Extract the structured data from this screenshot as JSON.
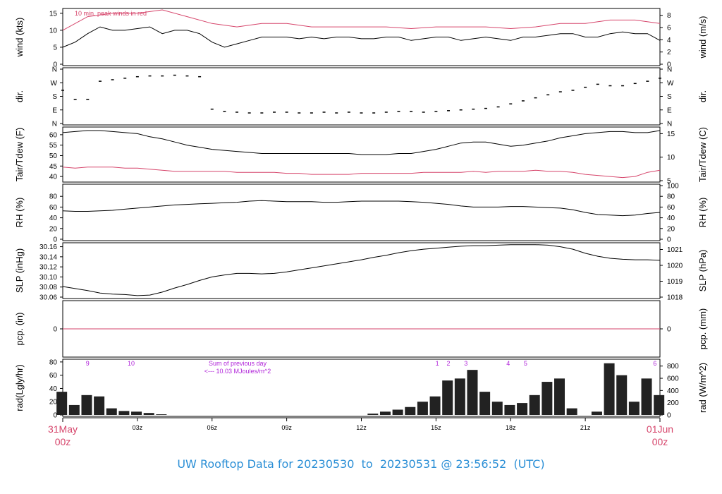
{
  "chart_data": {
    "type": "line",
    "title": "UW Rooftop Data for 20230530  to  20230531 @ 23:56:52  (UTC)",
    "x_range": [
      "00z",
      "24z"
    ],
    "x_ticks": [
      "03z",
      "06z",
      "09z",
      "12z",
      "15z",
      "18z",
      "21z"
    ],
    "x_start_label": [
      "31May",
      "00z"
    ],
    "x_end_label": [
      "01Jun",
      "00z"
    ],
    "accent_color": "#d6456b",
    "panels": [
      {
        "id": "wind",
        "ylabel": "wind (kts)",
        "ylabel_right": "wind (m/s)",
        "ylim": [
          0,
          16
        ],
        "ticks_left": [
          "0",
          "5",
          "10",
          "15"
        ],
        "ticks_right": [
          "0",
          "2",
          "4",
          "6",
          "8"
        ],
        "annotation": "10 min. peak winds in red",
        "series": [
          {
            "color": "#000000",
            "x": [
              0,
              0.5,
              1,
              1.5,
              2,
              2.5,
              3,
              3.5,
              4,
              4.5,
              5,
              5.5,
              6,
              6.5,
              7,
              7.5,
              8,
              8.5,
              9,
              9.5,
              10,
              10.5,
              11,
              11.5,
              12,
              12.5,
              13,
              13.5,
              14,
              14.5,
              15,
              15.5,
              16,
              16.5,
              17,
              17.5,
              18,
              18.5,
              19,
              19.5,
              20,
              20.5,
              21,
              21.5,
              22,
              22.5,
              23,
              23.5,
              24
            ],
            "y": [
              5,
              6.5,
              9,
              11,
              10,
              10,
              10.5,
              11,
              9,
              10,
              10,
              9,
              6.5,
              5,
              6,
              7,
              8,
              8,
              8,
              7.5,
              8,
              7.5,
              8,
              8,
              7.5,
              7.5,
              8,
              8,
              7,
              7.5,
              8,
              8,
              7,
              7.5,
              8,
              7.5,
              7,
              8,
              8,
              8.5,
              9,
              9,
              8,
              8,
              9,
              9.5,
              9,
              9,
              7
            ]
          },
          {
            "color": "#d6456b",
            "x": [
              0,
              1,
              2,
              3,
              4,
              5,
              6,
              7,
              8,
              9,
              10,
              11,
              12,
              13,
              14,
              15,
              16,
              17,
              18,
              19,
              20,
              21,
              22,
              23,
              24
            ],
            "y": [
              10,
              14,
              15,
              15,
              16,
              14,
              12,
              11,
              12,
              12,
              11,
              11,
              11,
              11,
              10.5,
              11,
              11,
              11,
              10.5,
              11,
              12,
              12,
              13,
              13,
              12
            ]
          }
        ]
      },
      {
        "id": "dir",
        "ylabel": "dir.",
        "ylabel_right": "dir.",
        "ylim": [
          0,
          360
        ],
        "ticks_left": [
          "N",
          "E",
          "S",
          "W",
          "N"
        ],
        "ticks_right": [
          "N",
          "E",
          "S",
          "W",
          "N"
        ],
        "series": [
          {
            "color": "#000000",
            "style": "points",
            "x": [
              0,
              0.5,
              1,
              1.5,
              2,
              2.5,
              3,
              3.5,
              4,
              4.5,
              5,
              5.5,
              6,
              6.5,
              7,
              7.5,
              8,
              8.5,
              9,
              9.5,
              10,
              10.5,
              11,
              11.5,
              12,
              12.5,
              13,
              13.5,
              14,
              14.5,
              15,
              15.5,
              16,
              16.5,
              17,
              17.5,
              18,
              18.5,
              19,
              19.5,
              20,
              20.5,
              21,
              21.5,
              22,
              22.5,
              23,
              23.5,
              24
            ],
            "y": [
              220,
              160,
              160,
              280,
              290,
              300,
              310,
              315,
              315,
              320,
              315,
              310,
              95,
              80,
              75,
              70,
              70,
              75,
              75,
              70,
              70,
              75,
              70,
              75,
              70,
              70,
              75,
              80,
              80,
              75,
              80,
              85,
              90,
              95,
              100,
              110,
              130,
              150,
              170,
              190,
              210,
              220,
              240,
              260,
              250,
              250,
              265,
              280,
              300
            ]
          }
        ]
      },
      {
        "id": "temp",
        "ylabel": "Tair/Tdew (F)",
        "ylabel_right": "Tair/Tdew (C)",
        "ylim": [
          38,
          63
        ],
        "ticks_left": [
          "40",
          "45",
          "50",
          "55",
          "60"
        ],
        "ticks_right": [
          "5",
          "10",
          "15"
        ],
        "series": [
          {
            "name": "Tair",
            "color": "#000000",
            "x": [
              0,
              0.5,
              1,
              1.5,
              2,
              2.5,
              3,
              3.5,
              4,
              4.5,
              5,
              5.5,
              6,
              6.5,
              7,
              7.5,
              8,
              8.5,
              9,
              9.5,
              10,
              10.5,
              11,
              11.5,
              12,
              12.5,
              13,
              13.5,
              14,
              14.5,
              15,
              15.5,
              16,
              16.5,
              17,
              17.5,
              18,
              18.5,
              19,
              19.5,
              20,
              20.5,
              21,
              21.5,
              22,
              22.5,
              23,
              23.5,
              24
            ],
            "y": [
              61,
              61.5,
              62,
              62,
              61.5,
              61,
              60.5,
              59,
              58,
              56.5,
              55,
              54,
              53,
              52.5,
              52,
              51.5,
              51,
              51,
              51,
              51,
              51,
              51,
              51,
              51,
              50.5,
              50.5,
              50.5,
              51,
              51,
              52,
              53,
              54.5,
              56,
              56.5,
              56.5,
              55.5,
              54.5,
              55,
              56,
              57,
              58.5,
              59.5,
              60.5,
              61,
              61.5,
              61.5,
              61,
              61,
              62
            ]
          },
          {
            "name": "Tdew",
            "color": "#d6456b",
            "x": [
              0,
              0.5,
              1,
              1.5,
              2,
              2.5,
              3,
              3.5,
              4,
              4.5,
              5,
              5.5,
              6,
              6.5,
              7,
              7.5,
              8,
              8.5,
              9,
              9.5,
              10,
              10.5,
              11,
              11.5,
              12,
              12.5,
              13,
              13.5,
              14,
              14.5,
              15,
              15.5,
              16,
              16.5,
              17,
              17.5,
              18,
              18.5,
              19,
              19.5,
              20,
              20.5,
              21,
              21.5,
              22,
              22.5,
              23,
              23.5,
              24
            ],
            "y": [
              44.5,
              44,
              44.5,
              44.5,
              44.5,
              44,
              44,
              43.5,
              43,
              42.5,
              42.5,
              42.5,
              42.5,
              42.5,
              42,
              42,
              42,
              42,
              41.5,
              41.5,
              41,
              41,
              41,
              41,
              41.5,
              41.5,
              41.5,
              41.5,
              41.5,
              42,
              42,
              42,
              42,
              42.5,
              42,
              42.5,
              42.5,
              42.5,
              43,
              42.5,
              42.5,
              42,
              41,
              40.5,
              40,
              39.5,
              40,
              42,
              43
            ]
          }
        ]
      },
      {
        "id": "rh",
        "ylabel": "RH (%)",
        "ylabel_right": "RH (%)",
        "ylim": [
          0,
          100
        ],
        "ticks_left": [
          "0",
          "20",
          "40",
          "60",
          "80"
        ],
        "ticks_right": [
          "0",
          "20",
          "40",
          "60",
          "80",
          "100"
        ],
        "series": [
          {
            "color": "#000000",
            "x": [
              0,
              0.5,
              1,
              1.5,
              2,
              2.5,
              3,
              3.5,
              4,
              4.5,
              5,
              5.5,
              6,
              6.5,
              7,
              7.5,
              8,
              8.5,
              9,
              9.5,
              10,
              10.5,
              11,
              11.5,
              12,
              12.5,
              13,
              13.5,
              14,
              14.5,
              15,
              15.5,
              16,
              16.5,
              17,
              17.5,
              18,
              18.5,
              19,
              19.5,
              20,
              20.5,
              21,
              21.5,
              22,
              22.5,
              23,
              23.5,
              24
            ],
            "y": [
              53,
              52,
              52,
              53,
              54,
              56,
              58,
              60,
              62,
              64,
              65,
              66,
              67,
              68,
              69,
              71,
              72,
              71,
              70,
              70,
              70,
              69,
              69,
              70,
              71,
              71,
              71,
              71,
              70,
              69,
              67,
              65,
              62,
              60,
              60,
              60,
              61,
              61,
              60,
              59,
              58,
              55,
              50,
              46,
              45,
              44,
              45,
              48,
              50
            ]
          }
        ]
      },
      {
        "id": "slp",
        "ylabel": "SLP (inHg)",
        "ylabel_right": "SLP (hPa)",
        "ylim": [
          30.06,
          30.165
        ],
        "ticks_left": [
          "30.06",
          "30.08",
          "30.10",
          "30.12",
          "30.14",
          "30.16"
        ],
        "ticks_right": [
          "1018",
          "1019",
          "1020",
          "1021"
        ],
        "series": [
          {
            "color": "#000000",
            "x": [
              0,
              0.5,
              1,
              1.5,
              2,
              2.5,
              3,
              3.5,
              4,
              4.5,
              5,
              5.5,
              6,
              6.5,
              7,
              7.5,
              8,
              8.5,
              9,
              9.5,
              10,
              10.5,
              11,
              11.5,
              12,
              12.5,
              13,
              13.5,
              14,
              14.5,
              15,
              15.5,
              16,
              16.5,
              17,
              17.5,
              18,
              18.5,
              19,
              19.5,
              20,
              20.5,
              21,
              21.5,
              22,
              22.5,
              23,
              23.5,
              24
            ],
            "y": [
              30.081,
              30.077,
              30.073,
              30.068,
              30.066,
              30.065,
              30.063,
              30.064,
              30.07,
              30.078,
              30.085,
              30.093,
              30.1,
              30.104,
              30.107,
              30.107,
              30.106,
              30.107,
              30.11,
              30.114,
              30.118,
              30.122,
              30.126,
              30.13,
              30.134,
              30.139,
              30.143,
              30.148,
              30.152,
              30.155,
              30.157,
              30.159,
              30.161,
              30.162,
              30.162,
              30.163,
              30.164,
              30.164,
              30.164,
              30.163,
              30.16,
              30.155,
              30.147,
              30.141,
              30.137,
              30.135,
              30.134,
              30.134,
              30.133
            ]
          }
        ]
      },
      {
        "id": "pcp",
        "ylabel": "pcp. (in)",
        "ylabel_right": "pcp. (mm)",
        "ylim": [
          -1,
          1
        ],
        "ticks_left": [
          "0"
        ],
        "ticks_right": [
          "0"
        ],
        "series": [
          {
            "color": "#d6456b",
            "x": [
              0,
              24
            ],
            "y": [
              0,
              0
            ]
          }
        ]
      },
      {
        "id": "rad",
        "type": "bar",
        "ylabel": "rad(Lgly/hr)",
        "ylabel_right": "rad (W/m^2)",
        "ylim": [
          0,
          82
        ],
        "ticks_left": [
          "0",
          "20",
          "40",
          "60",
          "80"
        ],
        "ticks_right": [
          "0",
          "200",
          "400",
          "600",
          "800"
        ],
        "annotations": [
          "Sum of previous day",
          "<--- 10.03 MJoules/m^2"
        ],
        "hour_labels": [
          {
            "x": 1,
            "text": "9"
          },
          {
            "x": 2.75,
            "text": "10"
          },
          {
            "x": 15.05,
            "text": "1"
          },
          {
            "x": 15.5,
            "text": "2"
          },
          {
            "x": 16.2,
            "text": "3"
          },
          {
            "x": 17.9,
            "text": "4"
          },
          {
            "x": 18.6,
            "text": "5"
          },
          {
            "x": 23.8,
            "text": "6"
          }
        ],
        "label_color": "#b023d9",
        "series": [
          {
            "color": "#000000",
            "x": [
              0,
              0.5,
              1,
              1.5,
              2,
              2.5,
              3,
              3.5,
              4,
              4.5,
              5,
              5.5,
              6,
              6.5,
              7,
              7.5,
              8,
              8.5,
              9,
              9.5,
              10,
              10.5,
              11,
              11.5,
              12,
              12.5,
              13,
              13.5,
              14,
              14.5,
              15,
              15.5,
              16,
              16.5,
              17,
              17.5,
              18,
              18.5,
              19,
              19.5,
              20,
              20.5,
              21,
              21.5,
              22,
              22.5,
              23,
              23.5,
              24
            ],
            "y": [
              35,
              15,
              30,
              28,
              10,
              6,
              5,
              3,
              1,
              0,
              0,
              0,
              0,
              0,
              0,
              0,
              0,
              0,
              0,
              0,
              0,
              0,
              0,
              0,
              0,
              2,
              5,
              8,
              12,
              20,
              28,
              52,
              55,
              68,
              35,
              20,
              15,
              18,
              30,
              50,
              55,
              10,
              0,
              5,
              78,
              60,
              20,
              55,
              30
            ]
          }
        ]
      }
    ]
  }
}
